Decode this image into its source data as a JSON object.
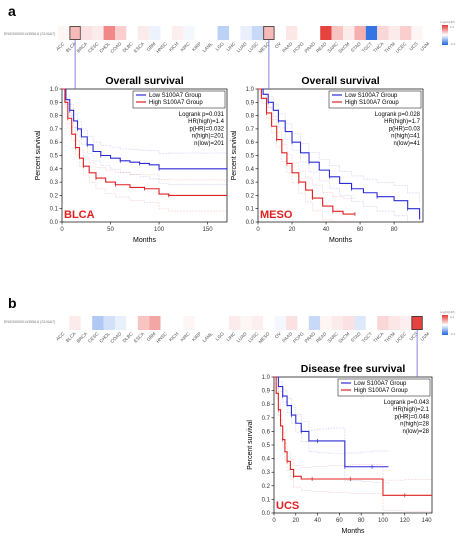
{
  "panels": [
    {
      "letter": "a",
      "gene_label": "ENSG00000143556.8 (S100A7)",
      "color_scale": {
        "title": "Log10(HR)",
        "max_label": "0.4",
        "min_label": "-0.4"
      },
      "cancers": [
        "ACC",
        "BLCA",
        "BRCA",
        "CESC",
        "CHOL",
        "COAD",
        "DLBC",
        "ESCA",
        "GBM",
        "HNSC",
        "KICH",
        "KIRC",
        "KIRP",
        "LAML",
        "LGG",
        "LIHC",
        "LUAD",
        "LUSC",
        "MESO",
        "OV",
        "PAAD",
        "PCPG",
        "PRAD",
        "READ",
        "SARC",
        "SKCM",
        "STAD",
        "TGCT",
        "THCA",
        "THYM",
        "UCEC",
        "UCS",
        "UVM"
      ],
      "heat": [
        0.05,
        0.35,
        0.15,
        0.1,
        0.6,
        0.25,
        0.0,
        0.1,
        -0.08,
        0.0,
        0.08,
        -0.05,
        0.0,
        0.0,
        -0.3,
        0.0,
        -0.1,
        -0.25,
        0.35,
        0.0,
        0.12,
        0.0,
        0.0,
        0.95,
        0.3,
        0.1,
        0.4,
        -0.9,
        0.2,
        0.1,
        0.25,
        0.05,
        0.0
      ],
      "highlight": [
        "BLCA",
        "MESO"
      ],
      "plots": [
        {
          "chart_data": {
            "type": "line",
            "title": "Overall survival",
            "cancer": "BLCA",
            "xlabel": "Months",
            "ylabel": "Percent survival",
            "xlim": [
              0,
              170
            ],
            "ylim": [
              0,
              1.0
            ],
            "xticks": [
              0,
              50,
              100,
              150
            ],
            "yticks": [
              0.0,
              0.1,
              0.2,
              0.3,
              0.4,
              0.5,
              0.6,
              0.7,
              0.8,
              0.9,
              1.0
            ],
            "legend_position": "top-right",
            "series": [
              {
                "name": "Low S100A7 Group",
                "color": "#2b2bd4",
                "x": [
                  0,
                  4,
                  8,
                  12,
                  16,
                  20,
                  26,
                  32,
                  40,
                  50,
                  60,
                  70,
                  80,
                  90,
                  100,
                  110,
                  170
                ],
                "y": [
                  1.0,
                  0.92,
                  0.84,
                  0.76,
                  0.7,
                  0.64,
                  0.58,
                  0.53,
                  0.5,
                  0.48,
                  0.46,
                  0.45,
                  0.44,
                  0.43,
                  0.4,
                  0.4,
                  0.4
                ]
              },
              {
                "name": "High S100A7 Group",
                "color": "#e02020",
                "x": [
                  0,
                  3,
                  6,
                  10,
                  14,
                  18,
                  22,
                  28,
                  35,
                  45,
                  55,
                  70,
                  85,
                  100,
                  110,
                  170
                ],
                "y": [
                  1.0,
                  0.9,
                  0.78,
                  0.66,
                  0.56,
                  0.48,
                  0.42,
                  0.37,
                  0.33,
                  0.3,
                  0.28,
                  0.26,
                  0.25,
                  0.21,
                  0.2,
                  0.2
                ]
              }
            ],
            "stats": [
              "Logrank p=0.031",
              "HR(high)=1.4",
              "p(HR)=0.032",
              "n(high)=201",
              "n(low)=201"
            ]
          }
        },
        {
          "chart_data": {
            "type": "line",
            "title": "Overall survival",
            "cancer": "MESO",
            "xlabel": "Months",
            "ylabel": "Percent survival",
            "xlim": [
              0,
              97
            ],
            "ylim": [
              0,
              1.0
            ],
            "xticks": [
              0,
              20,
              40,
              60,
              80
            ],
            "yticks": [
              0.0,
              0.1,
              0.2,
              0.3,
              0.4,
              0.5,
              0.6,
              0.7,
              0.8,
              0.9,
              1.0
            ],
            "legend_position": "top-right",
            "series": [
              {
                "name": "Low S100A7 Group",
                "color": "#2b2bd4",
                "x": [
                  0,
                  3,
                  6,
                  9,
                  12,
                  16,
                  20,
                  25,
                  30,
                  36,
                  42,
                  48,
                  55,
                  62,
                  70,
                  80,
                  88,
                  95
                ],
                "y": [
                  1.0,
                  0.96,
                  0.9,
                  0.84,
                  0.76,
                  0.68,
                  0.6,
                  0.52,
                  0.45,
                  0.39,
                  0.34,
                  0.29,
                  0.25,
                  0.22,
                  0.19,
                  0.16,
                  0.1,
                  0.02
                ]
              },
              {
                "name": "High S100A7 Group",
                "color": "#e02020",
                "x": [
                  0,
                  2,
                  5,
                  8,
                  11,
                  14,
                  17,
                  20,
                  24,
                  28,
                  32,
                  38,
                  44,
                  50,
                  57
                ],
                "y": [
                  1.0,
                  0.93,
                  0.82,
                  0.72,
                  0.62,
                  0.52,
                  0.44,
                  0.37,
                  0.3,
                  0.24,
                  0.18,
                  0.12,
                  0.08,
                  0.06,
                  0.06
                ]
              }
            ],
            "stats": [
              "Logrank p=0.028",
              "HR(high)=1.7",
              "p(HR)=0.03",
              "n(high)=41",
              "n(low)=41"
            ]
          }
        }
      ]
    },
    {
      "letter": "b",
      "gene_label": "ENSG00000143556.8 (S100A7)",
      "color_scale": {
        "title": "Log10(HR)",
        "max_label": "0.4",
        "min_label": "-0.4"
      },
      "cancers": [
        "ACC",
        "BLCA",
        "BRCA",
        "CESC",
        "CHOL",
        "COAD",
        "DLBC",
        "ESCA",
        "GBM",
        "HNSC",
        "KICH",
        "KIRC",
        "KIRP",
        "LAML",
        "LGG",
        "LIHC",
        "LUAD",
        "LUSC",
        "MESO",
        "OV",
        "PAAD",
        "PCPG",
        "PRAD",
        "READ",
        "SARC",
        "SKCM",
        "STAD",
        "TGCT",
        "THCA",
        "THYM",
        "UCEC",
        "UCS",
        "UVM"
      ],
      "heat": [
        0.0,
        0.1,
        0.0,
        -0.35,
        -0.2,
        -0.1,
        0.0,
        0.3,
        0.45,
        0.0,
        0.0,
        0.05,
        0.0,
        0.0,
        0.0,
        0.1,
        0.05,
        0.08,
        0.0,
        -0.05,
        0.15,
        0.0,
        -0.25,
        0.05,
        0.1,
        0.15,
        -0.15,
        0.0,
        0.2,
        0.12,
        0.08,
        0.95,
        0.0
      ],
      "highlight": [
        "UCS"
      ],
      "plots": [
        {
          "chart_data": {
            "type": "line",
            "title": "Disease free survival",
            "cancer": "UCS",
            "xlabel": "Months",
            "ylabel": "Percent survival",
            "xlim": [
              0,
              145
            ],
            "ylim": [
              0,
              1.0
            ],
            "xticks": [
              0,
              20,
              40,
              60,
              80,
              100,
              120,
              140
            ],
            "yticks": [
              0.0,
              0.1,
              0.2,
              0.3,
              0.4,
              0.5,
              0.6,
              0.7,
              0.8,
              0.9,
              1.0
            ],
            "legend_position": "top-right",
            "series": [
              {
                "name": "Low S100A7 Group",
                "color": "#2b2bd4",
                "x": [
                  0,
                  4,
                  8,
                  12,
                  16,
                  20,
                  25,
                  32,
                  40,
                  50,
                  65,
                  80,
                  90,
                  105
                ],
                "y": [
                  1.0,
                  0.93,
                  0.86,
                  0.79,
                  0.72,
                  0.66,
                  0.6,
                  0.53,
                  0.53,
                  0.53,
                  0.34,
                  0.34,
                  0.34,
                  0.34
                ]
              },
              {
                "name": "High S100A7 Group",
                "color": "#e02020",
                "x": [
                  0,
                  2,
                  4,
                  6,
                  8,
                  10,
                  12,
                  15,
                  18,
                  25,
                  35,
                  50,
                  70,
                  100,
                  120,
                  145
                ],
                "y": [
                  1.0,
                  0.88,
                  0.76,
                  0.64,
                  0.54,
                  0.45,
                  0.38,
                  0.32,
                  0.27,
                  0.25,
                  0.25,
                  0.25,
                  0.25,
                  0.13,
                  0.13,
                  0.13
                ]
              }
            ],
            "stats": [
              "Logrank p=0.043",
              "HR(high)=2.1",
              "p(HR)=0.048",
              "n(high)=28",
              "n(low)=28"
            ]
          }
        }
      ]
    }
  ]
}
